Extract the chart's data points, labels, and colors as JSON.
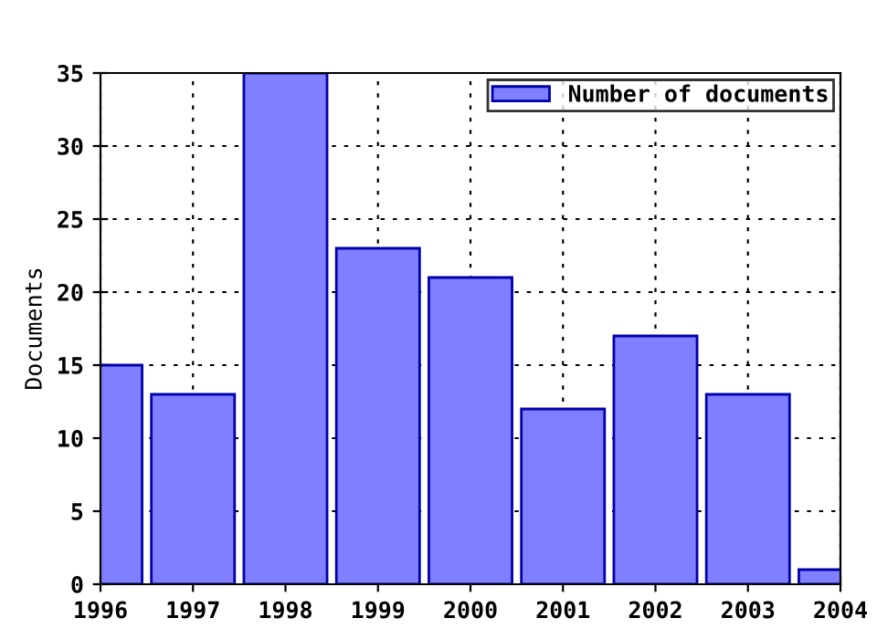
{
  "chart_data": {
    "type": "bar",
    "ylabel": "Documents",
    "x": [
      1996,
      1997,
      1998,
      1999,
      2000,
      2001,
      2002,
      2003,
      2004
    ],
    "series": [
      {
        "name": "Number of documents",
        "color": "#7f7fff",
        "values": [
          15,
          13,
          35,
          23,
          21,
          12,
          17,
          13,
          1
        ]
      }
    ],
    "xlim": [
      1996,
      2004
    ],
    "xticks": [
      1996,
      1997,
      1998,
      1999,
      2000,
      2001,
      2002,
      2003,
      2004
    ],
    "ylim": [
      0,
      35
    ],
    "yticks": [
      0,
      5,
      10,
      15,
      20,
      25,
      30,
      35
    ],
    "grid": true,
    "legend": "top right"
  }
}
